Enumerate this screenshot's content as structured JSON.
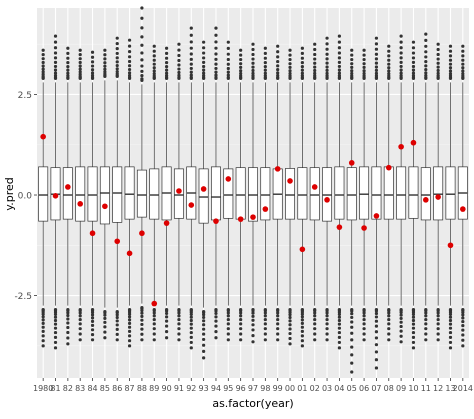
{
  "chart_data": {
    "type": "box",
    "title": "",
    "xlabel": "as.factor(year)",
    "ylabel": "y.pred",
    "ylim": [
      -4.55,
      4.65
    ],
    "yticks": [
      2.5,
      0.0,
      -2.5
    ],
    "ytick_labels": [
      "2.5",
      "0.0",
      "-2.5"
    ],
    "grid": true,
    "legend": "none",
    "colors": {
      "panel_background": "#ebebeb",
      "grid_major": "#ffffff",
      "grid_minor": "#f5f5f5",
      "box_fill": "#ffffff",
      "box_outline": "#333333",
      "outlier": "#333333",
      "mean_point": "#dd0000",
      "axis_text": "#4d4d4d",
      "axis_title": "#000000"
    },
    "categories": [
      "1980",
      "1981",
      "1982",
      "1983",
      "1984",
      "1985",
      "1986",
      "1987",
      "1988",
      "1989",
      "1990",
      "1991",
      "1992",
      "1993",
      "1994",
      "1995",
      "1996",
      "1997",
      "1998",
      "1999",
      "2000",
      "2001",
      "2002",
      "2003",
      "2004",
      "2005",
      "2006",
      "2007",
      "2008",
      "2009",
      "2010",
      "2011",
      "2012",
      "2013",
      "2014"
    ],
    "x_tick_labels": [
      "1980",
      "81",
      "82",
      "83",
      "84",
      "85",
      "86",
      "87",
      "88",
      "89",
      "90",
      "91",
      "92",
      "93",
      "94",
      "95",
      "96",
      "97",
      "98",
      "99",
      "00",
      "01",
      "02",
      "03",
      "04",
      "05",
      "06",
      "07",
      "08",
      "09",
      "10",
      "11",
      "12",
      "13",
      "2014"
    ],
    "series": [
      {
        "name": "",
        "kind": "boxplot",
        "q1": [
          -0.65,
          -0.62,
          -0.6,
          -0.65,
          -0.65,
          -0.72,
          -0.68,
          -0.6,
          -0.55,
          -0.6,
          -0.62,
          -0.58,
          -0.6,
          -0.7,
          -0.62,
          -0.58,
          -0.6,
          -0.65,
          -0.62,
          -0.6,
          -0.6,
          -0.6,
          -0.62,
          -0.65,
          -0.6,
          -0.62,
          -0.6,
          -0.6,
          -0.6,
          -0.6,
          -0.58,
          -0.62,
          -0.62,
          -0.6,
          -0.6
        ],
        "median": [
          0.0,
          0.02,
          0.0,
          0.0,
          0.0,
          0.05,
          0.05,
          0.02,
          0.0,
          0.0,
          0.05,
          0.0,
          0.05,
          -0.05,
          -0.05,
          0.0,
          0.0,
          0.0,
          0.0,
          0.02,
          0.0,
          0.0,
          0.0,
          0.0,
          0.0,
          0.0,
          0.02,
          0.0,
          0.0,
          0.0,
          0.0,
          0.0,
          0.02,
          0.02,
          0.05
        ],
        "q3": [
          0.7,
          0.68,
          0.68,
          0.7,
          0.7,
          0.7,
          0.7,
          0.7,
          0.62,
          0.65,
          0.7,
          0.65,
          0.7,
          0.65,
          0.7,
          0.65,
          0.68,
          0.68,
          0.68,
          0.65,
          0.66,
          0.68,
          0.68,
          0.68,
          0.7,
          0.68,
          0.7,
          0.7,
          0.7,
          0.7,
          0.7,
          0.68,
          0.7,
          0.7,
          0.7
        ],
        "whisker_low": [
          -2.75,
          -2.75,
          -2.75,
          -2.75,
          -2.75,
          -2.8,
          -2.8,
          -2.75,
          -2.7,
          -2.75,
          -2.75,
          -2.75,
          -2.75,
          -2.8,
          -2.75,
          -2.75,
          -2.75,
          -2.75,
          -2.75,
          -2.75,
          -2.75,
          -2.75,
          -2.75,
          -2.75,
          -2.75,
          -2.75,
          -2.75,
          -2.75,
          -2.75,
          -2.75,
          -2.75,
          -2.75,
          -2.75,
          -2.75,
          -2.75
        ],
        "whisker_high": [
          2.8,
          2.8,
          2.8,
          2.8,
          2.8,
          2.85,
          2.85,
          2.8,
          2.75,
          2.8,
          2.8,
          2.8,
          2.8,
          2.8,
          2.8,
          2.8,
          2.8,
          2.8,
          2.8,
          2.8,
          2.8,
          2.8,
          2.8,
          2.8,
          2.8,
          2.8,
          2.8,
          2.8,
          2.8,
          2.8,
          2.8,
          2.8,
          2.8,
          2.8,
          2.8
        ],
        "outlier_high_max": [
          3.6,
          3.95,
          3.65,
          3.6,
          3.55,
          3.6,
          3.9,
          3.85,
          4.65,
          3.7,
          3.65,
          3.75,
          4.15,
          3.8,
          4.15,
          3.8,
          3.6,
          3.75,
          3.65,
          3.7,
          3.6,
          3.65,
          3.75,
          3.9,
          3.95,
          3.6,
          3.6,
          3.9,
          3.7,
          3.95,
          3.8,
          4.0,
          3.75,
          3.7,
          3.7
        ],
        "outlier_low_min": [
          -3.75,
          -3.8,
          -3.7,
          -3.6,
          -3.6,
          -3.55,
          -3.6,
          -3.75,
          -3.6,
          -3.6,
          -3.55,
          -3.6,
          -3.8,
          -4.05,
          -3.55,
          -3.6,
          -3.6,
          -3.65,
          -3.6,
          -3.6,
          -3.7,
          -3.75,
          -3.6,
          -3.6,
          -3.8,
          -4.4,
          -3.6,
          -4.3,
          -3.6,
          -3.65,
          -3.8,
          -3.6,
          -3.6,
          -3.8,
          -3.75
        ],
        "outlier_high_count": [
          11,
          12,
          10,
          11,
          9,
          10,
          12,
          11,
          12,
          11,
          10,
          10,
          12,
          11,
          12,
          10,
          10,
          11,
          10,
          10,
          10,
          10,
          11,
          12,
          12,
          10,
          10,
          12,
          11,
          12,
          11,
          12,
          11,
          11,
          11
        ],
        "outlier_low_count": [
          12,
          12,
          10,
          9,
          10,
          8,
          9,
          12,
          10,
          9,
          8,
          9,
          12,
          12,
          8,
          9,
          9,
          9,
          9,
          9,
          11,
          12,
          9,
          9,
          12,
          12,
          9,
          12,
          9,
          10,
          12,
          9,
          9,
          12,
          11
        ]
      },
      {
        "name": "",
        "kind": "mean_point",
        "values": [
          1.45,
          -0.02,
          0.2,
          -0.22,
          -0.95,
          -0.28,
          -1.15,
          -1.45,
          -0.95,
          -2.7,
          -0.7,
          0.1,
          -0.25,
          0.15,
          -0.65,
          0.4,
          -0.6,
          -0.55,
          -0.35,
          0.65,
          0.35,
          -1.35,
          0.2,
          -0.12,
          -0.8,
          0.8,
          -0.82,
          -0.52,
          0.68,
          1.2,
          1.3,
          -0.12,
          -0.05,
          -1.25,
          -0.35
        ]
      }
    ]
  }
}
